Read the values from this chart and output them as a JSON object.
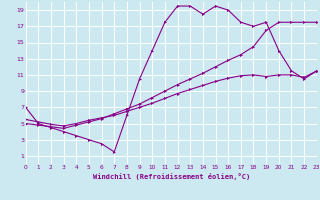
{
  "xlabel": "Windchill (Refroidissement éolien,°C)",
  "bg_color": "#cce8f0",
  "line_color": "#880088",
  "grid_color": "#ffffff",
  "xlim": [
    0,
    23
  ],
  "ylim": [
    0,
    20
  ],
  "xticks": [
    0,
    1,
    2,
    3,
    4,
    5,
    6,
    7,
    8,
    9,
    10,
    11,
    12,
    13,
    14,
    15,
    16,
    17,
    18,
    19,
    20,
    21,
    22,
    23
  ],
  "yticks": [
    1,
    3,
    5,
    7,
    9,
    11,
    13,
    15,
    17,
    19
  ],
  "line1_x": [
    0,
    1,
    2,
    3,
    4,
    5,
    6,
    7,
    8,
    9,
    10,
    11,
    12,
    13,
    14,
    15,
    16,
    17,
    18,
    19,
    20,
    21,
    22,
    23
  ],
  "line1_y": [
    7,
    5,
    4.5,
    4,
    3.5,
    3,
    2.5,
    1.5,
    6,
    10.5,
    14,
    17.5,
    19.5,
    19.5,
    18.5,
    19.5,
    19,
    17.5,
    17,
    17.5,
    14,
    11.5,
    10.5,
    11.5
  ],
  "line2_x": [
    0,
    1,
    2,
    3,
    4,
    5,
    6,
    7,
    8,
    9,
    10,
    11,
    12,
    13,
    14,
    15,
    16,
    17,
    18,
    19,
    20,
    21,
    22,
    23
  ],
  "line2_y": [
    5,
    4.8,
    4.6,
    4.4,
    4.8,
    5.2,
    5.6,
    6.2,
    6.8,
    7.4,
    8.2,
    9.0,
    9.8,
    10.5,
    11.2,
    12.0,
    12.8,
    13.5,
    14.5,
    16.5,
    17.5,
    17.5,
    17.5,
    17.5
  ],
  "line3_x": [
    0,
    1,
    2,
    3,
    4,
    5,
    6,
    7,
    8,
    9,
    10,
    11,
    12,
    13,
    14,
    15,
    16,
    17,
    18,
    19,
    20,
    21,
    22,
    23
  ],
  "line3_y": [
    5.5,
    5.2,
    4.9,
    4.7,
    5.0,
    5.4,
    5.7,
    6.0,
    6.5,
    7.0,
    7.5,
    8.1,
    8.7,
    9.2,
    9.7,
    10.2,
    10.6,
    10.9,
    11.0,
    10.8,
    11.0,
    11.0,
    10.7,
    11.5
  ]
}
